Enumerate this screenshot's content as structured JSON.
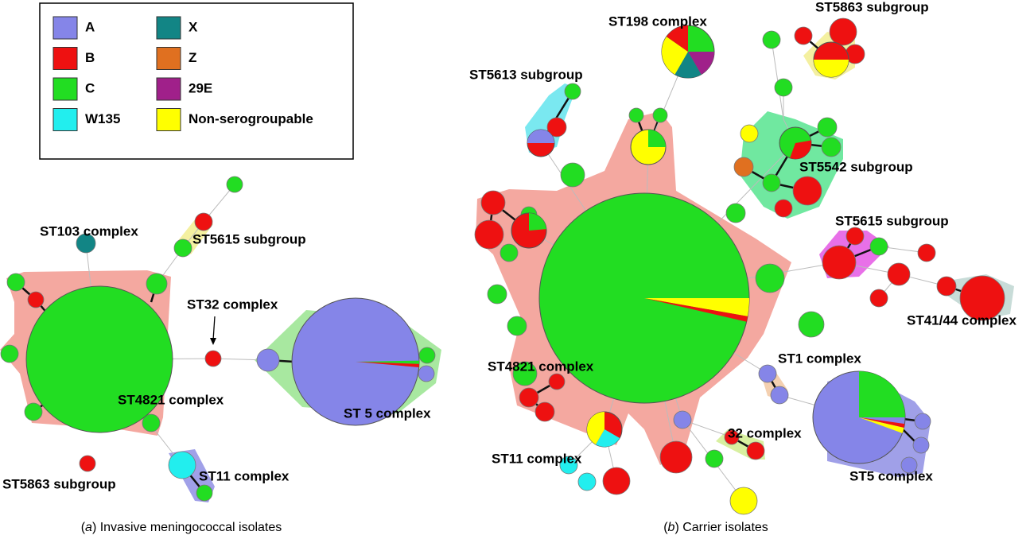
{
  "legend": {
    "items": [
      {
        "label": "A",
        "color": "#8585e8"
      },
      {
        "label": "B",
        "color": "#ee1111"
      },
      {
        "label": "C",
        "color": "#22dd22"
      },
      {
        "label": "W135",
        "color": "#22eeee"
      },
      {
        "label": "X",
        "color": "#128585"
      },
      {
        "label": "Z",
        "color": "#e07020"
      },
      {
        "label": "29E",
        "color": "#a0208a"
      },
      {
        "label": "Non-serogroupable",
        "color": "#ffff00"
      }
    ]
  },
  "panels": [
    {
      "caption_parts": [
        "(",
        "a",
        ")  Invasive meningococcal isolates"
      ],
      "labels": [
        "ST103 complex",
        "ST5615 subgroup",
        "ST32 complex",
        "ST4821 complex",
        "ST 5 complex",
        "ST5863 subgroup",
        "ST11 complex"
      ]
    },
    {
      "caption_parts": [
        "(",
        "b",
        ")  Carrier isolates"
      ],
      "labels": [
        "ST198 complex",
        "ST5863 subgroup",
        "ST5613 subgroup",
        "ST5542 subgroup",
        "ST5615 subgroup",
        "ST41/44 complex",
        "ST1 complex",
        "ST4821 complex",
        "32 complex",
        "ST11 complex",
        "ST5 complex"
      ]
    }
  ]
}
